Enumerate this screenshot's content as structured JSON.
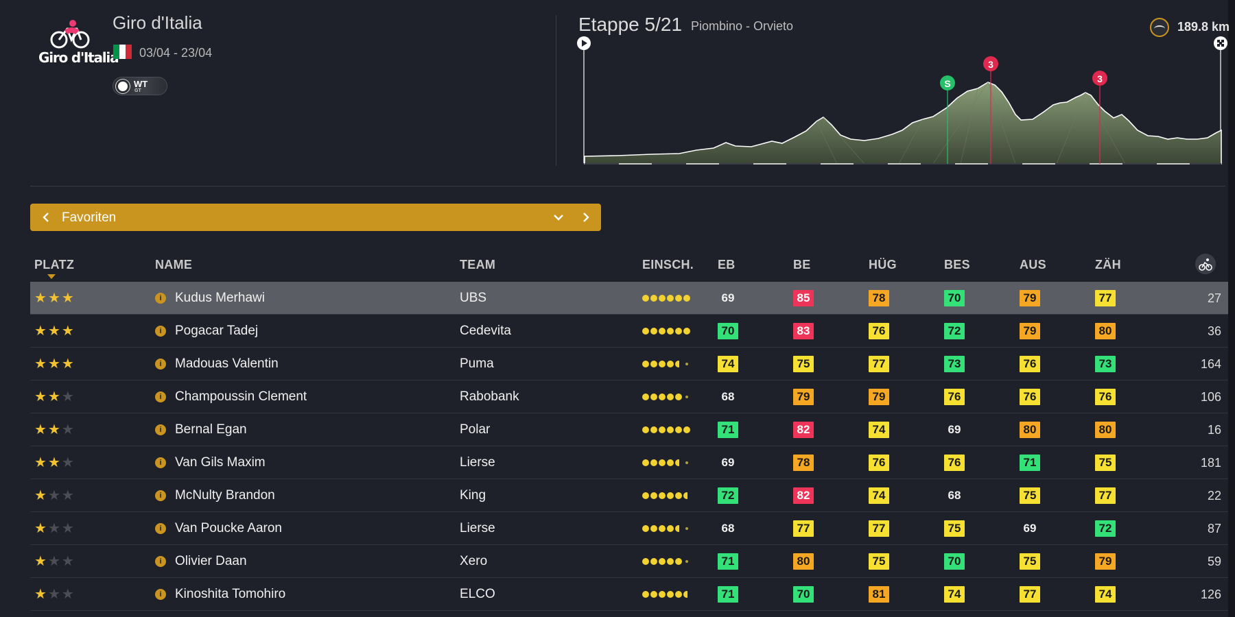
{
  "race": {
    "logo_text": "Giro d'Italia",
    "title": "Giro d'Italia",
    "dates": "03/04 - 23/04",
    "flag_colors": [
      "#009246",
      "#ffffff",
      "#ce2b37"
    ],
    "badge_top": "WT",
    "badge_bottom": "GT"
  },
  "stage": {
    "title": "Etappe 5/21",
    "route": "Piombino - Orvieto",
    "distance": "189.8 km",
    "markers": [
      {
        "label": "S",
        "color": "#26c06a"
      },
      {
        "label": "3",
        "color": "#e0294f"
      },
      {
        "label": "3",
        "color": "#e0294f"
      }
    ]
  },
  "selector": {
    "label": "Favoriten"
  },
  "table": {
    "headers": {
      "platz": "PLATZ",
      "name": "NAME",
      "team": "TEAM",
      "einsch": "EINSCH.",
      "eb": "EB",
      "be": "BE",
      "hug": "HÜG",
      "bes": "BES",
      "aus": "AUS",
      "zah": "ZÄH"
    },
    "rows": [
      {
        "stars": 3,
        "name": "Kudus Merhawi",
        "team": "UBS",
        "form": "6",
        "eb": {
          "v": "69",
          "c": "plain"
        },
        "be": {
          "v": "85",
          "c": "red"
        },
        "hug": {
          "v": "78",
          "c": "orange"
        },
        "bes": {
          "v": "70",
          "c": "green"
        },
        "aus": {
          "v": "79",
          "c": "orange"
        },
        "zah": {
          "v": "77",
          "c": "yellow"
        },
        "last": "27",
        "selected": true
      },
      {
        "stars": 3,
        "name": "Pogacar Tadej",
        "team": "Cedevita",
        "form": "6",
        "eb": {
          "v": "70",
          "c": "green"
        },
        "be": {
          "v": "83",
          "c": "red"
        },
        "hug": {
          "v": "76",
          "c": "yellow"
        },
        "bes": {
          "v": "72",
          "c": "green"
        },
        "aus": {
          "v": "79",
          "c": "orange"
        },
        "zah": {
          "v": "80",
          "c": "orange"
        },
        "last": "36"
      },
      {
        "stars": 3,
        "name": "Madouas Valentin",
        "team": "Puma",
        "form": "4h",
        "eb": {
          "v": "74",
          "c": "yellow"
        },
        "be": {
          "v": "75",
          "c": "yellow"
        },
        "hug": {
          "v": "77",
          "c": "yellow"
        },
        "bes": {
          "v": "73",
          "c": "green"
        },
        "aus": {
          "v": "76",
          "c": "yellow"
        },
        "zah": {
          "v": "73",
          "c": "green"
        },
        "last": "164"
      },
      {
        "stars": 2,
        "name": "Champoussin Clement",
        "team": "Rabobank",
        "form": "5t",
        "eb": {
          "v": "68",
          "c": "plain"
        },
        "be": {
          "v": "79",
          "c": "orange"
        },
        "hug": {
          "v": "79",
          "c": "orange"
        },
        "bes": {
          "v": "76",
          "c": "yellow"
        },
        "aus": {
          "v": "76",
          "c": "yellow"
        },
        "zah": {
          "v": "76",
          "c": "yellow"
        },
        "last": "106"
      },
      {
        "stars": 2,
        "name": "Bernal Egan",
        "team": "Polar",
        "form": "6",
        "eb": {
          "v": "71",
          "c": "green"
        },
        "be": {
          "v": "82",
          "c": "red"
        },
        "hug": {
          "v": "74",
          "c": "yellow"
        },
        "bes": {
          "v": "69",
          "c": "plain"
        },
        "aus": {
          "v": "80",
          "c": "orange"
        },
        "zah": {
          "v": "80",
          "c": "orange"
        },
        "last": "16"
      },
      {
        "stars": 2,
        "name": "Van Gils Maxim",
        "team": "Lierse",
        "form": "4h",
        "eb": {
          "v": "69",
          "c": "plain"
        },
        "be": {
          "v": "78",
          "c": "orange"
        },
        "hug": {
          "v": "76",
          "c": "yellow"
        },
        "bes": {
          "v": "76",
          "c": "yellow"
        },
        "aus": {
          "v": "71",
          "c": "green"
        },
        "zah": {
          "v": "75",
          "c": "yellow"
        },
        "last": "181"
      },
      {
        "stars": 1,
        "name": "McNulty Brandon",
        "team": "King",
        "form": "5h",
        "eb": {
          "v": "72",
          "c": "green"
        },
        "be": {
          "v": "82",
          "c": "red"
        },
        "hug": {
          "v": "74",
          "c": "yellow"
        },
        "bes": {
          "v": "68",
          "c": "plain"
        },
        "aus": {
          "v": "75",
          "c": "yellow"
        },
        "zah": {
          "v": "77",
          "c": "yellow"
        },
        "last": "22"
      },
      {
        "stars": 1,
        "name": "Van Poucke Aaron",
        "team": "Lierse",
        "form": "4h",
        "eb": {
          "v": "68",
          "c": "plain"
        },
        "be": {
          "v": "77",
          "c": "yellow"
        },
        "hug": {
          "v": "77",
          "c": "yellow"
        },
        "bes": {
          "v": "75",
          "c": "yellow"
        },
        "aus": {
          "v": "69",
          "c": "plain"
        },
        "zah": {
          "v": "72",
          "c": "green"
        },
        "last": "87"
      },
      {
        "stars": 1,
        "name": "Olivier Daan",
        "team": "Xero",
        "form": "5t",
        "eb": {
          "v": "71",
          "c": "green"
        },
        "be": {
          "v": "80",
          "c": "orange"
        },
        "hug": {
          "v": "75",
          "c": "yellow"
        },
        "bes": {
          "v": "70",
          "c": "green"
        },
        "aus": {
          "v": "75",
          "c": "yellow"
        },
        "zah": {
          "v": "79",
          "c": "orange"
        },
        "last": "59"
      },
      {
        "stars": 1,
        "name": "Kinoshita Tomohiro",
        "team": "ELCO",
        "form": "5h",
        "eb": {
          "v": "71",
          "c": "green"
        },
        "be": {
          "v": "70",
          "c": "green"
        },
        "hug": {
          "v": "81",
          "c": "orange"
        },
        "bes": {
          "v": "74",
          "c": "yellow"
        },
        "aus": {
          "v": "77",
          "c": "yellow"
        },
        "zah": {
          "v": "74",
          "c": "yellow"
        },
        "last": "126"
      }
    ]
  }
}
